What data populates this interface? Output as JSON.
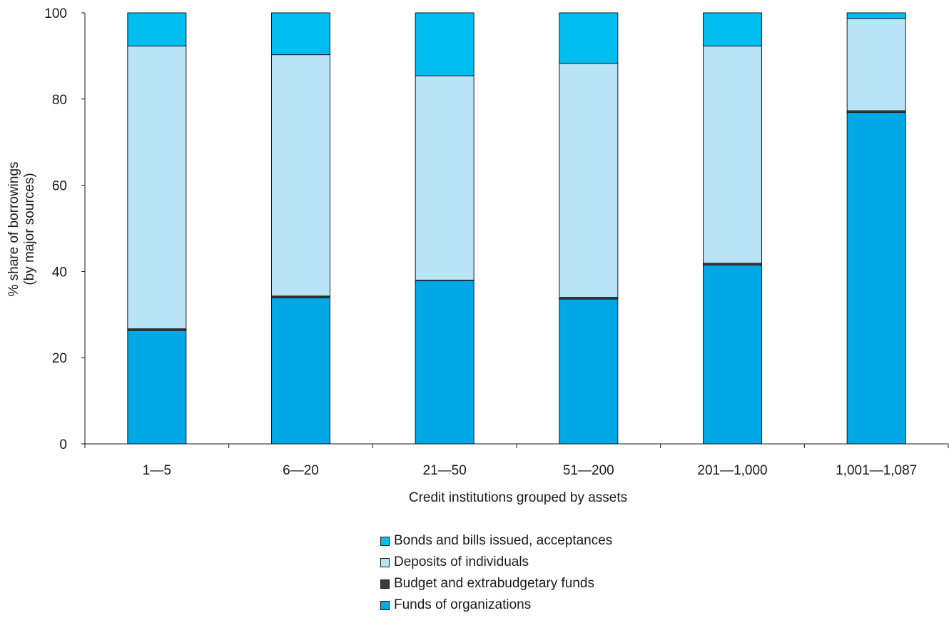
{
  "chart_data": {
    "type": "bar",
    "stacked": true,
    "title": "",
    "xlabel": "Credit institutions grouped by assets",
    "ylabel_lines": [
      "% share of borrowings",
      "(by major sources)"
    ],
    "ylim": [
      0,
      100
    ],
    "yticks": [
      0,
      20,
      40,
      60,
      80,
      100
    ],
    "categories": [
      "1—5",
      "6—20",
      "21—50",
      "51—200",
      "201—1,000",
      "1,001—1,087"
    ],
    "series": [
      {
        "name": "Funds of organizations",
        "color": "#00a9e6",
        "values": [
          26.3,
          33.9,
          37.9,
          33.6,
          41.5,
          76.9
        ]
      },
      {
        "name": "Budget and extrabudgetary funds",
        "color": "#3c3c3c",
        "values": [
          0.4,
          0.4,
          0.1,
          0.4,
          0.4,
          0.4
        ]
      },
      {
        "name": "Deposits of individuals",
        "color": "#b9e4f7",
        "values": [
          65.6,
          56.0,
          47.4,
          54.3,
          50.4,
          21.4
        ]
      },
      {
        "name": "Bonds and bills issued, acceptances",
        "color": "#00bdf0",
        "values": [
          7.7,
          9.7,
          14.6,
          11.7,
          7.7,
          1.3
        ]
      }
    ],
    "legend_order": [
      3,
      2,
      1,
      0
    ],
    "legend_position": "bottom-center",
    "grid": false
  }
}
